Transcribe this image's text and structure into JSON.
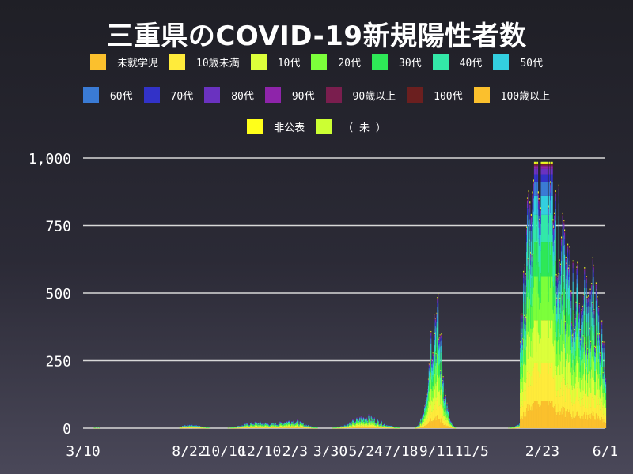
{
  "chart_data": {
    "type": "area",
    "title": "三重県のCOVID-19新規陽性者数",
    "xlabel": "",
    "ylabel": "",
    "ylim": [
      0,
      1000
    ],
    "yticks": [
      "0",
      "250",
      "500",
      "750",
      "1,000"
    ],
    "ytick_values": [
      0,
      250,
      500,
      750,
      1000
    ],
    "xticks": [
      "3/10",
      "8/22",
      "10/16",
      "12/10",
      "2/3",
      "3/30",
      "5/24",
      "7/18",
      "9/11",
      "11/5",
      "2/23",
      "6/1"
    ],
    "xtick_index": [
      0,
      165,
      220,
      275,
      330,
      385,
      440,
      495,
      550,
      605,
      715,
      813
    ],
    "legend_placement": "top",
    "grid": "horizontal",
    "stacked": true,
    "series": [
      {
        "name": "未就学児",
        "color": "#fbc02d"
      },
      {
        "name": "10歳未満",
        "color": "#ffeb3b"
      },
      {
        "name": "10代",
        "color": "#dcff3b"
      },
      {
        "name": "20代",
        "color": "#7cff3b"
      },
      {
        "name": "30代",
        "color": "#2ee857"
      },
      {
        "name": "40代",
        "color": "#33e8a8"
      },
      {
        "name": "50代",
        "color": "#33cfe0"
      },
      {
        "name": "60代",
        "color": "#3a7bd5"
      },
      {
        "name": "70代",
        "color": "#3232c8"
      },
      {
        "name": "80代",
        "color": "#6a32c0"
      },
      {
        "name": "90代",
        "color": "#8e24aa"
      },
      {
        "name": "90歳以上",
        "color": "#7a1e4e"
      },
      {
        "name": "100代",
        "color": "#6b1f1f"
      },
      {
        "name": "100歳以上",
        "color": "#fbc02d"
      },
      {
        "name": "非公表",
        "color": "#ffff1a"
      },
      {
        "name": "（ 未 ）",
        "color": "#ccff33"
      }
    ],
    "total_daily_key_points": [
      {
        "x": "3/10",
        "y": 2
      },
      {
        "x": "8/22",
        "y": 12
      },
      {
        "x": "10/16",
        "y": 10
      },
      {
        "x": "12/10",
        "y": 25
      },
      {
        "x": "2/3",
        "y": 30
      },
      {
        "x": "3/30",
        "y": 8
      },
      {
        "x": "5/24",
        "y": 45
      },
      {
        "x": "7/18",
        "y": 15
      },
      {
        "x": "9/11",
        "y": 510
      },
      {
        "x": "11/5",
        "y": 2
      },
      {
        "x": "2/23",
        "y": 1000
      },
      {
        "x": "6/1",
        "y": 260
      }
    ]
  }
}
